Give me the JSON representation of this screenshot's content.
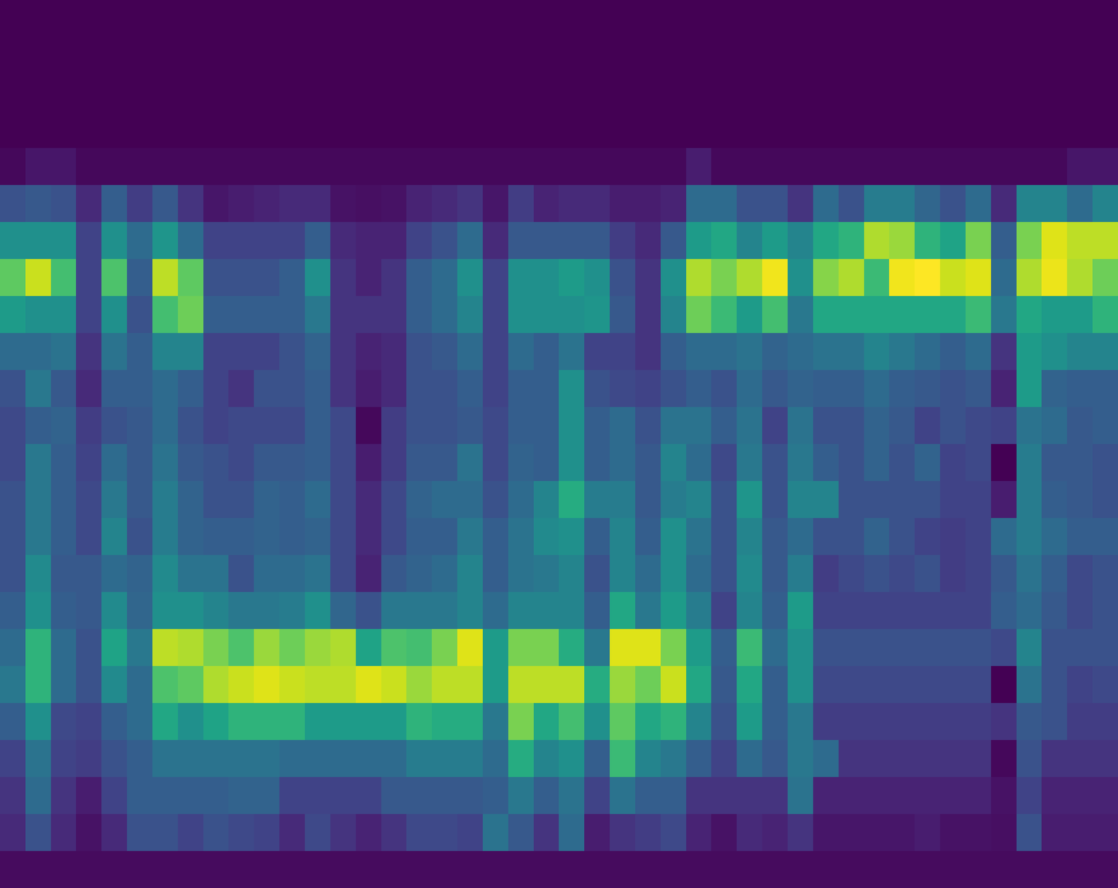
{
  "chart_data": {
    "type": "heatmap",
    "color": "viridis",
    "tick_labels": false,
    "color_range": [
      0,
      1
    ],
    "cells": [
      [
        0,
        0,
        0,
        0,
        0,
        0,
        0,
        0,
        0,
        0,
        0,
        0,
        0,
        0,
        0,
        0,
        0,
        0,
        0,
        0,
        0,
        0,
        0,
        0,
        0,
        0,
        0,
        0,
        0,
        0,
        0,
        0,
        0,
        0,
        0,
        0,
        0,
        0,
        0,
        0,
        0,
        0,
        0,
        0
      ],
      [
        0,
        0,
        0,
        0,
        0,
        0,
        0,
        0,
        0,
        0,
        0,
        0,
        0,
        0,
        0,
        0,
        0,
        0,
        0,
        0,
        0,
        0,
        0,
        0,
        0,
        0,
        0,
        0,
        0,
        0,
        0,
        0,
        0,
        0,
        0,
        0,
        0,
        0,
        0,
        0,
        0,
        0,
        0,
        0
      ],
      [
        0,
        0,
        0,
        0,
        0,
        0,
        0,
        0,
        0,
        0,
        0,
        0,
        0,
        0,
        0,
        0,
        0,
        0,
        0,
        0,
        0,
        0,
        0,
        0,
        0,
        0,
        0,
        0,
        0,
        0,
        0,
        0,
        0,
        0,
        0,
        0,
        0,
        0,
        0,
        0,
        0,
        0,
        0,
        0
      ],
      [
        0,
        0,
        0,
        0,
        0,
        0,
        0,
        0,
        0,
        0,
        0,
        0,
        0,
        0,
        0,
        0,
        0,
        0,
        0,
        0,
        0,
        0,
        0,
        0,
        0,
        0,
        0,
        0,
        0,
        0,
        0,
        0,
        0,
        0,
        0,
        0,
        0,
        0,
        0,
        0,
        0,
        0,
        0,
        0
      ],
      [
        0.02,
        0.06,
        0.06,
        0.02,
        0.02,
        0.02,
        0.02,
        0.02,
        0.02,
        0.02,
        0.02,
        0.02,
        0.02,
        0.02,
        0.02,
        0.02,
        0.02,
        0.02,
        0.02,
        0.02,
        0.02,
        0.02,
        0.02,
        0.02,
        0.02,
        0.02,
        0.02,
        0.08,
        0.02,
        0.02,
        0.02,
        0.02,
        0.02,
        0.02,
        0.02,
        0.02,
        0.02,
        0.02,
        0.02,
        0.02,
        0.02,
        0.02,
        0.06,
        0.06
      ],
      [
        0.25,
        0.28,
        0.25,
        0.12,
        0.3,
        0.18,
        0.28,
        0.15,
        0.06,
        0.08,
        0.1,
        0.12,
        0.12,
        0.05,
        0.04,
        0.05,
        0.1,
        0.12,
        0.15,
        0.06,
        0.18,
        0.1,
        0.12,
        0.12,
        0.08,
        0.08,
        0.1,
        0.35,
        0.35,
        0.25,
        0.25,
        0.15,
        0.35,
        0.25,
        0.42,
        0.42,
        0.33,
        0.25,
        0.35,
        0.12,
        0.45,
        0.45,
        0.35,
        0.45
      ],
      [
        0.5,
        0.5,
        0.5,
        0.2,
        0.5,
        0.35,
        0.52,
        0.35,
        0.2,
        0.2,
        0.2,
        0.2,
        0.3,
        0.12,
        0.1,
        0.1,
        0.2,
        0.25,
        0.35,
        0.12,
        0.28,
        0.28,
        0.28,
        0.28,
        0.18,
        0.12,
        0.28,
        0.55,
        0.6,
        0.45,
        0.55,
        0.45,
        0.6,
        0.65,
        0.88,
        0.85,
        0.65,
        0.58,
        0.8,
        0.3,
        0.8,
        0.95,
        0.9,
        0.9
      ],
      [
        0.75,
        0.92,
        0.7,
        0.2,
        0.72,
        0.3,
        0.9,
        0.75,
        0.25,
        0.25,
        0.25,
        0.3,
        0.5,
        0.15,
        0.1,
        0.15,
        0.3,
        0.35,
        0.5,
        0.2,
        0.5,
        0.5,
        0.55,
        0.5,
        0.25,
        0.15,
        0.5,
        0.88,
        0.8,
        0.88,
        0.98,
        0.5,
        0.82,
        0.88,
        0.68,
        0.98,
        1.0,
        0.92,
        0.95,
        0.35,
        0.88,
        0.97,
        0.88,
        0.78
      ],
      [
        0.55,
        0.5,
        0.5,
        0.2,
        0.5,
        0.25,
        0.7,
        0.78,
        0.3,
        0.3,
        0.3,
        0.3,
        0.4,
        0.15,
        0.15,
        0.15,
        0.3,
        0.35,
        0.45,
        0.2,
        0.5,
        0.5,
        0.5,
        0.52,
        0.28,
        0.15,
        0.45,
        0.78,
        0.68,
        0.55,
        0.7,
        0.4,
        0.6,
        0.6,
        0.6,
        0.6,
        0.6,
        0.6,
        0.68,
        0.4,
        0.6,
        0.55,
        0.55,
        0.65
      ],
      [
        0.35,
        0.35,
        0.38,
        0.15,
        0.38,
        0.3,
        0.45,
        0.45,
        0.2,
        0.2,
        0.2,
        0.25,
        0.32,
        0.15,
        0.1,
        0.12,
        0.25,
        0.28,
        0.35,
        0.2,
        0.35,
        0.3,
        0.38,
        0.2,
        0.2,
        0.15,
        0.3,
        0.35,
        0.35,
        0.38,
        0.32,
        0.35,
        0.38,
        0.38,
        0.45,
        0.4,
        0.35,
        0.3,
        0.35,
        0.15,
        0.55,
        0.5,
        0.45,
        0.45
      ],
      [
        0.25,
        0.4,
        0.28,
        0.12,
        0.3,
        0.3,
        0.35,
        0.3,
        0.2,
        0.15,
        0.25,
        0.25,
        0.3,
        0.15,
        0.08,
        0.12,
        0.25,
        0.25,
        0.3,
        0.2,
        0.3,
        0.3,
        0.5,
        0.25,
        0.22,
        0.2,
        0.25,
        0.3,
        0.25,
        0.35,
        0.28,
        0.32,
        0.3,
        0.3,
        0.35,
        0.3,
        0.28,
        0.25,
        0.28,
        0.1,
        0.55,
        0.32,
        0.3,
        0.3
      ],
      [
        0.22,
        0.3,
        0.32,
        0.18,
        0.25,
        0.28,
        0.35,
        0.25,
        0.2,
        0.22,
        0.22,
        0.22,
        0.3,
        0.22,
        0.02,
        0.18,
        0.25,
        0.25,
        0.28,
        0.22,
        0.3,
        0.3,
        0.5,
        0.3,
        0.35,
        0.25,
        0.38,
        0.38,
        0.3,
        0.38,
        0.2,
        0.38,
        0.25,
        0.25,
        0.32,
        0.28,
        0.2,
        0.25,
        0.22,
        0.2,
        0.38,
        0.35,
        0.28,
        0.3
      ],
      [
        0.22,
        0.4,
        0.3,
        0.2,
        0.35,
        0.28,
        0.38,
        0.28,
        0.25,
        0.22,
        0.28,
        0.28,
        0.3,
        0.22,
        0.08,
        0.18,
        0.28,
        0.28,
        0.38,
        0.22,
        0.32,
        0.3,
        0.5,
        0.3,
        0.35,
        0.28,
        0.45,
        0.35,
        0.22,
        0.4,
        0.25,
        0.4,
        0.3,
        0.25,
        0.32,
        0.25,
        0.32,
        0.2,
        0.22,
        0.0,
        0.42,
        0.28,
        0.28,
        0.25
      ],
      [
        0.25,
        0.4,
        0.3,
        0.22,
        0.4,
        0.28,
        0.42,
        0.32,
        0.25,
        0.25,
        0.32,
        0.3,
        0.35,
        0.22,
        0.12,
        0.22,
        0.32,
        0.35,
        0.35,
        0.25,
        0.35,
        0.45,
        0.62,
        0.42,
        0.42,
        0.28,
        0.42,
        0.45,
        0.25,
        0.52,
        0.25,
        0.45,
        0.45,
        0.25,
        0.25,
        0.25,
        0.25,
        0.2,
        0.2,
        0.08,
        0.42,
        0.3,
        0.28,
        0.25
      ],
      [
        0.25,
        0.4,
        0.3,
        0.22,
        0.45,
        0.25,
        0.42,
        0.32,
        0.3,
        0.3,
        0.32,
        0.3,
        0.32,
        0.22,
        0.12,
        0.22,
        0.3,
        0.3,
        0.4,
        0.3,
        0.38,
        0.48,
        0.5,
        0.3,
        0.45,
        0.3,
        0.5,
        0.38,
        0.25,
        0.45,
        0.28,
        0.35,
        0.25,
        0.25,
        0.32,
        0.25,
        0.2,
        0.18,
        0.2,
        0.35,
        0.42,
        0.35,
        0.3,
        0.3
      ],
      [
        0.25,
        0.48,
        0.28,
        0.28,
        0.35,
        0.32,
        0.48,
        0.38,
        0.38,
        0.25,
        0.35,
        0.35,
        0.38,
        0.22,
        0.1,
        0.28,
        0.32,
        0.35,
        0.45,
        0.3,
        0.38,
        0.4,
        0.45,
        0.25,
        0.45,
        0.35,
        0.5,
        0.35,
        0.25,
        0.48,
        0.28,
        0.42,
        0.18,
        0.22,
        0.25,
        0.22,
        0.25,
        0.18,
        0.2,
        0.28,
        0.38,
        0.3,
        0.22,
        0.25
      ],
      [
        0.3,
        0.5,
        0.3,
        0.28,
        0.48,
        0.33,
        0.5,
        0.5,
        0.45,
        0.4,
        0.4,
        0.42,
        0.5,
        0.33,
        0.25,
        0.4,
        0.4,
        0.4,
        0.45,
        0.35,
        0.45,
        0.45,
        0.45,
        0.3,
        0.6,
        0.4,
        0.55,
        0.42,
        0.2,
        0.45,
        0.3,
        0.55,
        0.2,
        0.2,
        0.2,
        0.2,
        0.2,
        0.2,
        0.2,
        0.3,
        0.35,
        0.28,
        0.22,
        0.25
      ],
      [
        0.35,
        0.65,
        0.35,
        0.25,
        0.58,
        0.4,
        0.9,
        0.88,
        0.8,
        0.72,
        0.85,
        0.78,
        0.85,
        0.88,
        0.58,
        0.72,
        0.7,
        0.8,
        0.95,
        0.55,
        0.8,
        0.8,
        0.62,
        0.4,
        0.95,
        0.95,
        0.8,
        0.55,
        0.3,
        0.68,
        0.35,
        0.5,
        0.25,
        0.25,
        0.25,
        0.25,
        0.25,
        0.25,
        0.25,
        0.22,
        0.45,
        0.25,
        0.25,
        0.25
      ],
      [
        0.4,
        0.65,
        0.35,
        0.25,
        0.48,
        0.35,
        0.72,
        0.75,
        0.88,
        0.92,
        0.95,
        0.92,
        0.9,
        0.9,
        0.95,
        0.92,
        0.85,
        0.9,
        0.9,
        0.55,
        0.9,
        0.9,
        0.9,
        0.62,
        0.85,
        0.78,
        0.92,
        0.6,
        0.28,
        0.6,
        0.3,
        0.5,
        0.22,
        0.22,
        0.22,
        0.22,
        0.22,
        0.22,
        0.22,
        0.0,
        0.38,
        0.25,
        0.2,
        0.22
      ],
      [
        0.3,
        0.5,
        0.22,
        0.2,
        0.3,
        0.35,
        0.6,
        0.5,
        0.58,
        0.65,
        0.65,
        0.65,
        0.55,
        0.55,
        0.55,
        0.55,
        0.65,
        0.62,
        0.62,
        0.4,
        0.8,
        0.6,
        0.7,
        0.5,
        0.75,
        0.6,
        0.65,
        0.45,
        0.25,
        0.55,
        0.3,
        0.4,
        0.18,
        0.18,
        0.18,
        0.18,
        0.18,
        0.18,
        0.18,
        0.15,
        0.28,
        0.25,
        0.18,
        0.18
      ],
      [
        0.2,
        0.38,
        0.2,
        0.18,
        0.25,
        0.3,
        0.38,
        0.38,
        0.38,
        0.38,
        0.38,
        0.35,
        0.35,
        0.35,
        0.35,
        0.35,
        0.42,
        0.42,
        0.42,
        0.35,
        0.62,
        0.45,
        0.5,
        0.3,
        0.68,
        0.45,
        0.4,
        0.3,
        0.2,
        0.35,
        0.28,
        0.4,
        0.35,
        0.15,
        0.15,
        0.15,
        0.15,
        0.15,
        0.15,
        0.02,
        0.25,
        0.15,
        0.15,
        0.15
      ],
      [
        0.15,
        0.35,
        0.15,
        0.08,
        0.2,
        0.3,
        0.3,
        0.3,
        0.3,
        0.32,
        0.32,
        0.2,
        0.2,
        0.2,
        0.2,
        0.28,
        0.28,
        0.28,
        0.28,
        0.3,
        0.4,
        0.3,
        0.38,
        0.2,
        0.38,
        0.3,
        0.3,
        0.15,
        0.15,
        0.15,
        0.15,
        0.38,
        0.1,
        0.1,
        0.1,
        0.1,
        0.1,
        0.1,
        0.1,
        0.05,
        0.2,
        0.1,
        0.1,
        0.1
      ],
      [
        0.12,
        0.25,
        0.12,
        0.05,
        0.12,
        0.25,
        0.25,
        0.2,
        0.25,
        0.22,
        0.2,
        0.12,
        0.22,
        0.15,
        0.1,
        0.15,
        0.22,
        0.22,
        0.2,
        0.38,
        0.28,
        0.15,
        0.35,
        0.08,
        0.15,
        0.18,
        0.22,
        0.1,
        0.05,
        0.12,
        0.1,
        0.15,
        0.06,
        0.06,
        0.06,
        0.06,
        0.08,
        0.05,
        0.05,
        0.04,
        0.25,
        0.08,
        0.08,
        0.08
      ],
      [
        0.03,
        0.03,
        0.03,
        0.03,
        0.03,
        0.03,
        0.03,
        0.03,
        0.03,
        0.03,
        0.03,
        0.03,
        0.03,
        0.03,
        0.03,
        0.03,
        0.03,
        0.03,
        0.03,
        0.03,
        0.03,
        0.03,
        0.03,
        0.03,
        0.03,
        0.03,
        0.03,
        0.03,
        0.03,
        0.03,
        0.03,
        0.03,
        0.03,
        0.03,
        0.03,
        0.03,
        0.03,
        0.03,
        0.03,
        0.03,
        0.03,
        0.03,
        0.03,
        0.03
      ]
    ]
  }
}
